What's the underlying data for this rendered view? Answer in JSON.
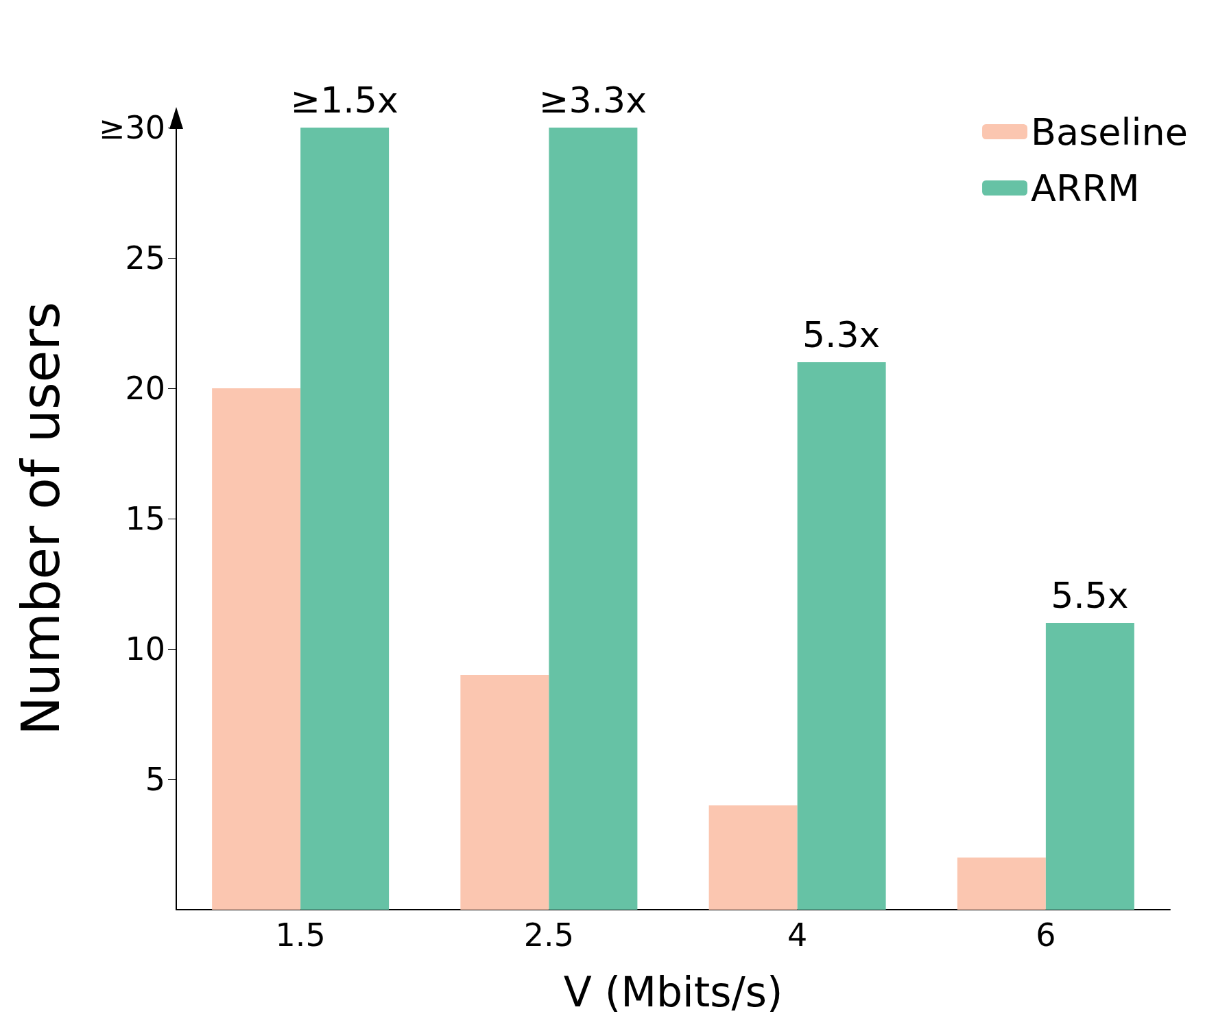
{
  "chart_data": {
    "type": "bar",
    "xlabel": "V (Mbits/s)",
    "ylabel": "Number of users",
    "categories": [
      "1.5",
      "2.5",
      "4",
      "6"
    ],
    "series": [
      {
        "name": "Baseline",
        "color": "#fbc6b0",
        "values": [
          20,
          9,
          4,
          2
        ]
      },
      {
        "name": "ARRM",
        "color": "#66c2a5",
        "values": [
          30,
          30,
          21,
          11
        ]
      }
    ],
    "ylim": [
      0,
      30
    ],
    "yticks": [
      5,
      10,
      15,
      20,
      25,
      {
        "value": 30,
        "label": "≥30"
      }
    ],
    "annotations": [
      {
        "text": "≥1.5x",
        "x": "1.5",
        "y": 30
      },
      {
        "text": "≥3.3x",
        "x": "2.5",
        "y": 30
      },
      {
        "text": "5.3x",
        "x": "4",
        "y": 21
      },
      {
        "text": "5.5x",
        "x": "6",
        "y": 11
      }
    ],
    "grid": false,
    "legend": "top right"
  }
}
